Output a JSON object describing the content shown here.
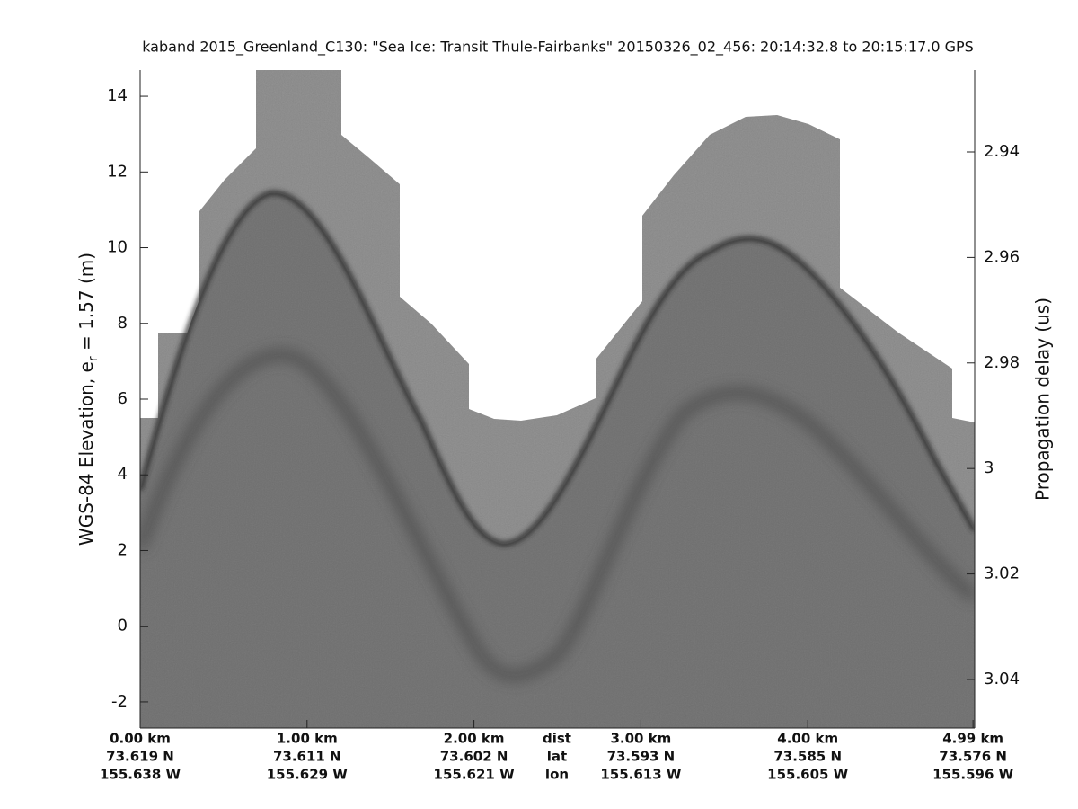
{
  "chart_data": {
    "type": "echogram",
    "title": "kaband 2015_Greenland_C130: \"Sea Ice: Transit Thule-Fairbanks\"  20150326_02_456: 20:14:32.8 to 20:15:17.0 GPS",
    "ylabel": {
      "prefix": "WGS-84 Elevation, e",
      "subscript": "r",
      "suffix": " = 1.57 (m)"
    },
    "y2label": "Propagation delay (us)",
    "xlim": [
      0,
      5.0
    ],
    "xticks": [
      {
        "value": 0,
        "label": "0.00 km"
      },
      {
        "value": 1,
        "label": "1.00 km"
      },
      {
        "value": 2,
        "label": "2.00 km"
      },
      {
        "value": 3,
        "label": "3.00 km"
      },
      {
        "value": 4,
        "label": "4.00 km"
      },
      {
        "value": 4.99,
        "label": "4.99 km"
      }
    ],
    "x_lat_labels": [
      "73.619 N",
      "73.611 N",
      "73.602 N",
      "73.593 N",
      "73.585 N",
      "73.576 N"
    ],
    "x_lon_labels": [
      "155.638 W",
      "155.629 W",
      "155.621 W",
      "155.613 W",
      "155.605 W",
      "155.596 W"
    ],
    "x_row_labels": [
      "dist",
      "lat",
      "lon"
    ],
    "ylim": [
      -2.69,
      14.69
    ],
    "yticks": [
      -2,
      0,
      2,
      4,
      6,
      8,
      10,
      12,
      14
    ],
    "y2lim": [
      3.0492,
      2.9245
    ],
    "y2ticks": [
      2.94,
      2.96,
      2.98,
      3,
      3.02,
      3.04
    ]
  }
}
